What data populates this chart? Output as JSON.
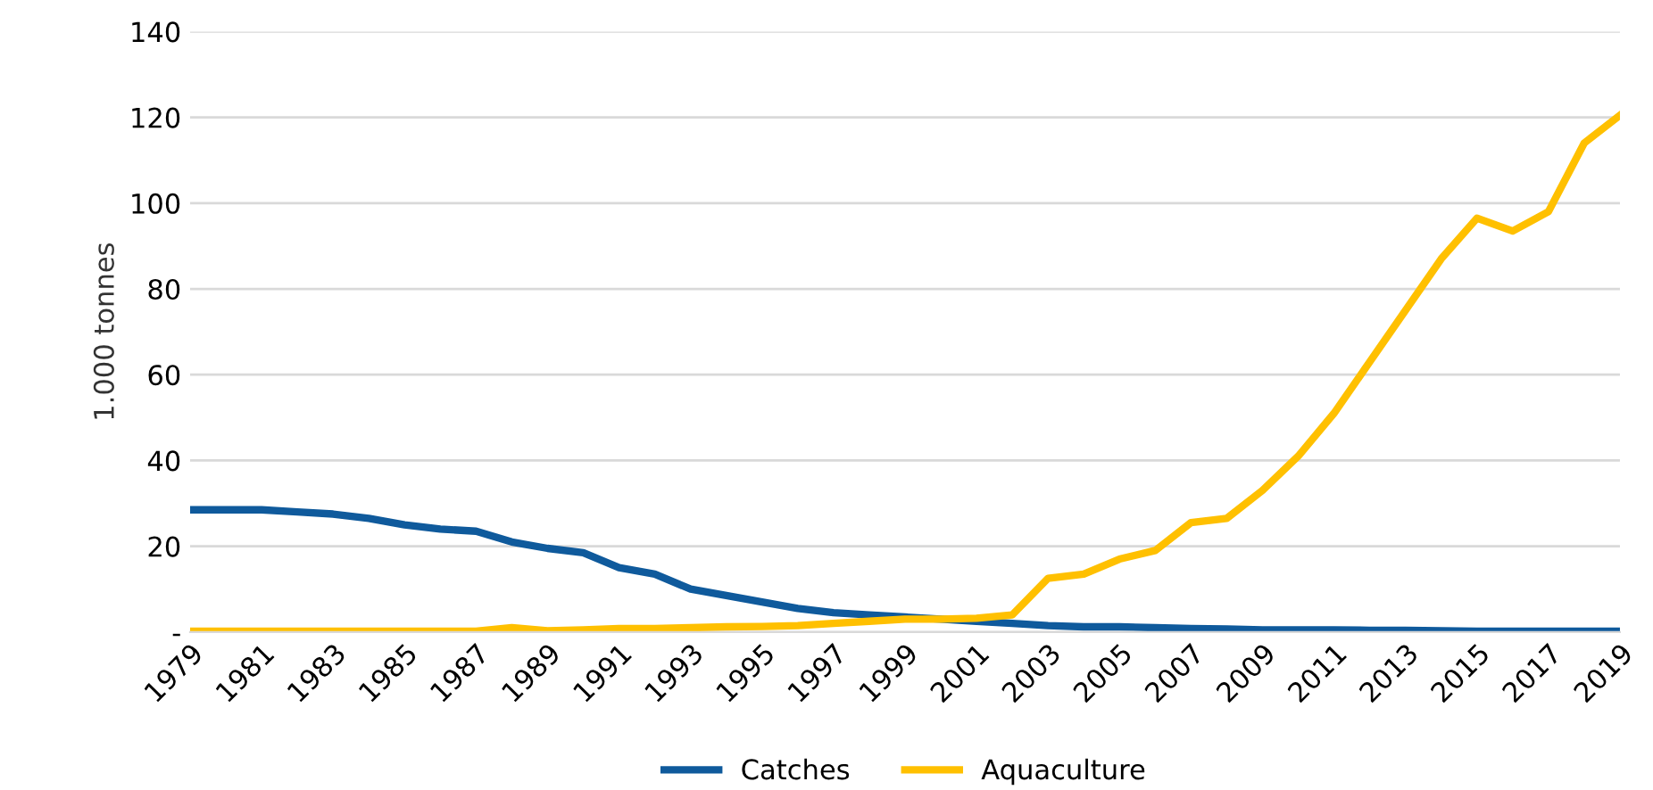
{
  "chart_data": {
    "type": "line",
    "ylabel": "1.000 tonnes",
    "categories": [
      "1979",
      null,
      "1981",
      null,
      "1983",
      null,
      "1985",
      null,
      "1987",
      null,
      "1989",
      null,
      "1991",
      null,
      "1993",
      null,
      "1995",
      null,
      "1997",
      null,
      "1999",
      null,
      "2001",
      null,
      "2003",
      null,
      "2005",
      null,
      "2007",
      null,
      "2009",
      null,
      "2011",
      null,
      "2013",
      null,
      "2015",
      null,
      "2017",
      null,
      "2019"
    ],
    "series": [
      {
        "name": "Catches",
        "color": "#0f5a9c",
        "values": [
          28.5,
          28.5,
          28.5,
          28,
          27.5,
          26.5,
          25,
          24,
          23.5,
          21,
          19.5,
          18.5,
          15,
          13.5,
          10,
          8.5,
          7,
          5.5,
          4.5,
          4,
          3.5,
          3,
          2.5,
          2,
          1.5,
          1.2,
          1.2,
          1,
          0.8,
          0.7,
          0.5,
          0.5,
          0.5,
          0.4,
          0.4,
          0.3,
          0.2,
          0.2,
          0.2,
          0.2,
          0.2
        ]
      },
      {
        "name": "Aquaculture",
        "color": "#ffc000",
        "values": [
          0.2,
          0.2,
          0.2,
          0.2,
          0.2,
          0.2,
          0.2,
          0.2,
          0.2,
          1,
          0.3,
          0.5,
          0.8,
          0.8,
          1,
          1.2,
          1.3,
          1.5,
          2,
          2.5,
          3,
          3,
          3.2,
          4,
          12.5,
          13.5,
          17,
          19,
          25.5,
          26.5,
          33,
          41,
          51,
          63,
          75,
          87,
          96.5,
          93.5,
          98,
          114,
          120.5
        ]
      }
    ],
    "ylim": [
      0,
      140
    ],
    "yticks": [
      {
        "value": 0,
        "label": "-"
      },
      20,
      40,
      60,
      80,
      100,
      120,
      140
    ],
    "grid": "y",
    "legend": "bottom",
    "marker": "none",
    "line_style": "solid"
  }
}
